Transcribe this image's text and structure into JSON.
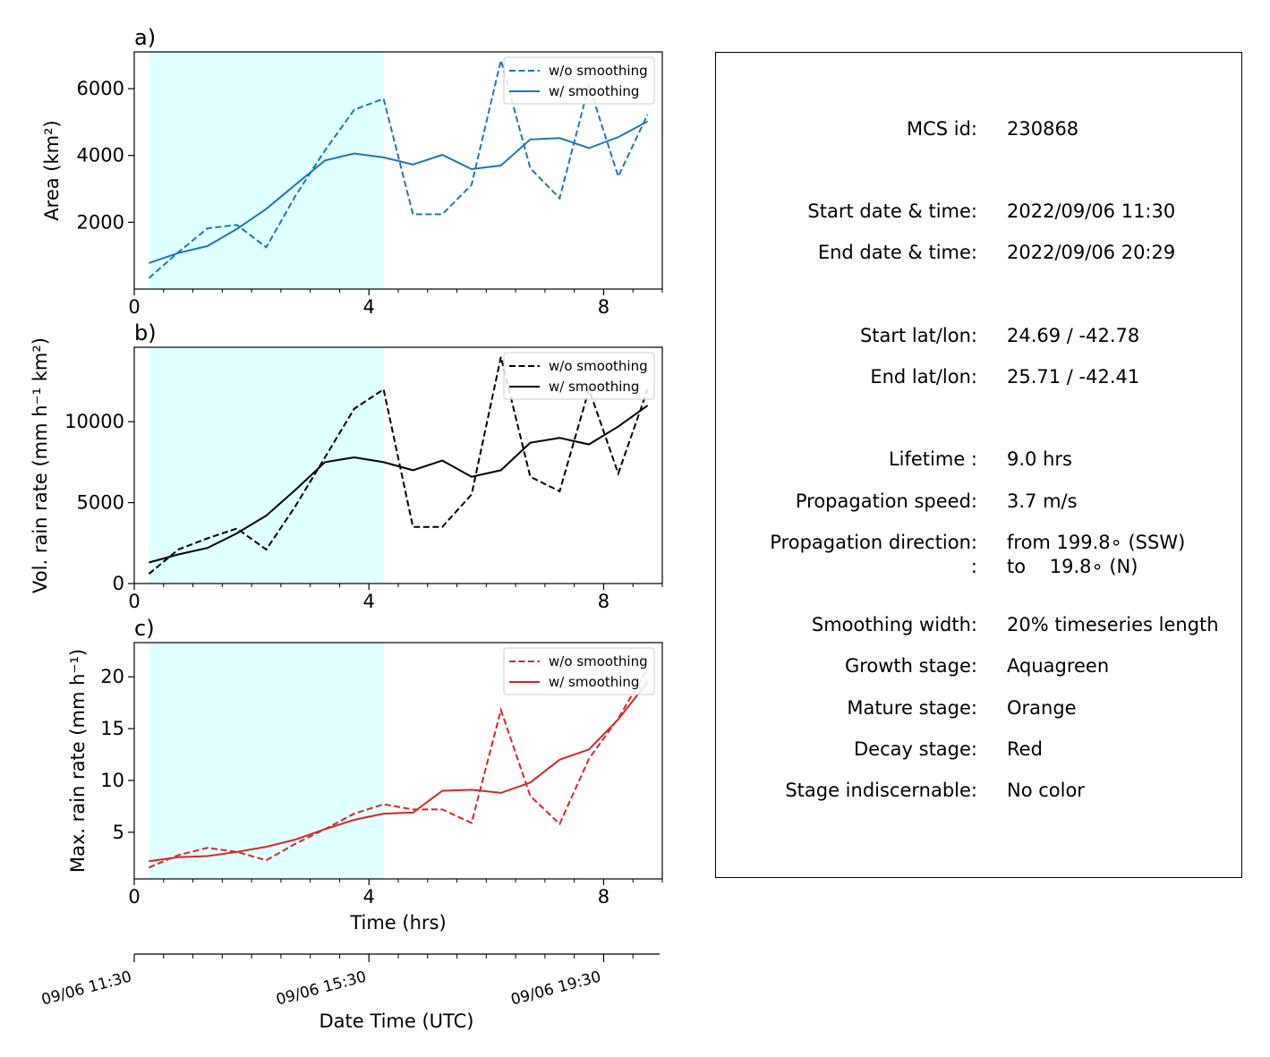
{
  "colors": {
    "growth_span": "#e0ffff",
    "area_series": "#1f77b4",
    "volrain_series": "#000000",
    "maxrain_series": "#d62728"
  },
  "chart_data": [
    {
      "type": "line",
      "panel_label": "a)",
      "ylabel": "Area  (km²)",
      "xlim": [
        0,
        9
      ],
      "ylim": [
        0,
        7100
      ],
      "xticks": [
        0,
        4,
        8
      ],
      "xticks_minor": [
        0.5,
        1,
        1.5,
        2,
        2.5,
        3,
        3.5,
        4.5,
        5,
        5.5,
        6,
        6.5,
        7,
        7.5,
        8.5,
        9
      ],
      "yticks": [
        2000,
        4000,
        6000
      ],
      "growth_span": [
        0.25,
        4.25
      ],
      "legend_location": "upper-right",
      "x": [
        0.25,
        0.75,
        1.25,
        1.75,
        2.25,
        2.75,
        3.25,
        3.75,
        4.25,
        4.75,
        5.25,
        5.75,
        6.25,
        6.75,
        7.25,
        7.75,
        8.25,
        8.75
      ],
      "series": [
        {
          "name": "w/o smoothing",
          "style": "dashed",
          "values": [
            330,
            1100,
            1820,
            1920,
            1250,
            2800,
            4150,
            5370,
            5700,
            2240,
            2240,
            3120,
            6850,
            3620,
            2720,
            6100,
            3370,
            5230
          ]
        },
        {
          "name": "w/ smoothing",
          "style": "solid",
          "values": [
            780,
            1080,
            1290,
            1800,
            2400,
            3130,
            3850,
            4060,
            3940,
            3730,
            4020,
            3590,
            3700,
            4480,
            4520,
            4220,
            4550,
            5020
          ]
        }
      ]
    },
    {
      "type": "line",
      "panel_label": "b)",
      "ylabel": "Vol. rain rate (mm h⁻¹ km²)",
      "xlim": [
        0,
        9
      ],
      "ylim": [
        0,
        14600
      ],
      "xticks": [
        0,
        4,
        8
      ],
      "xticks_minor": [
        0.5,
        1,
        1.5,
        2,
        2.5,
        3,
        3.5,
        4.5,
        5,
        5.5,
        6,
        6.5,
        7,
        7.5,
        8.5,
        9
      ],
      "yticks": [
        0,
        5000,
        10000
      ],
      "growth_span": [
        0.25,
        4.25
      ],
      "legend_location": "upper-right",
      "x": [
        0.25,
        0.75,
        1.25,
        1.75,
        2.25,
        2.75,
        3.25,
        3.75,
        4.25,
        4.75,
        5.25,
        5.75,
        6.25,
        6.75,
        7.25,
        7.75,
        8.25,
        8.75
      ],
      "series": [
        {
          "name": "w/o smoothing",
          "style": "dashed",
          "values": [
            600,
            2100,
            2800,
            3400,
            2100,
            4800,
            7800,
            10800,
            12000,
            3500,
            3500,
            5500,
            14000,
            6600,
            5700,
            12000,
            6800,
            12000
          ]
        },
        {
          "name": "w/ smoothing",
          "style": "solid",
          "values": [
            1300,
            1800,
            2200,
            3100,
            4200,
            5800,
            7500,
            7800,
            7500,
            7000,
            7600,
            6600,
            7000,
            8700,
            9000,
            8600,
            9700,
            11000
          ]
        }
      ]
    },
    {
      "type": "line",
      "panel_label": "c)",
      "ylabel": "Max. rain rate  (mm h⁻¹)",
      "xlabel": "Time (hrs)",
      "xlim": [
        0,
        9
      ],
      "ylim": [
        0.5,
        23.3
      ],
      "xticks": [
        0,
        4,
        8
      ],
      "xticks_minor": [
        0.5,
        1,
        1.5,
        2,
        2.5,
        3,
        3.5,
        4.5,
        5,
        5.5,
        6,
        6.5,
        7,
        7.5,
        8.5,
        9
      ],
      "yticks": [
        5,
        10,
        15,
        20
      ],
      "growth_span": [
        0.25,
        4.25
      ],
      "legend_location": "upper-right",
      "x": [
        0.25,
        0.75,
        1.25,
        1.75,
        2.25,
        2.75,
        3.25,
        3.75,
        4.25,
        4.75,
        5.25,
        5.75,
        6.25,
        6.75,
        7.25,
        7.75,
        8.25,
        8.75
      ],
      "series": [
        {
          "name": "w/o smoothing",
          "style": "dashed",
          "values": [
            1.6,
            2.8,
            3.5,
            3.1,
            2.3,
            3.9,
            5.3,
            6.8,
            7.7,
            7.2,
            7.2,
            5.9,
            16.8,
            8.5,
            5.8,
            12.1,
            16.0,
            20.8
          ]
        },
        {
          "name": "w/ smoothing",
          "style": "solid",
          "values": [
            2.2,
            2.6,
            2.7,
            3.1,
            3.6,
            4.3,
            5.3,
            6.2,
            6.8,
            6.9,
            9.0,
            9.1,
            8.8,
            9.8,
            12.0,
            13.0,
            15.9,
            19.5
          ]
        }
      ]
    }
  ],
  "datetime_axis": {
    "label": "Date Time (UTC)",
    "ticks": [
      {
        "hrs": 0,
        "label": "09/06 11:30"
      },
      {
        "hrs": 4,
        "label": "09/06 15:30"
      },
      {
        "hrs": 8,
        "label": "09/06 19:30"
      }
    ],
    "minor_ticks": [
      0.5,
      1,
      1.5,
      2,
      2.5,
      3,
      3.5,
      4.5,
      5,
      5.5,
      6,
      6.5,
      7,
      7.5,
      8.5
    ]
  },
  "info": {
    "mcs_id_label": "MCS id:",
    "mcs_id": "230868",
    "start_time_label": "Start date & time:",
    "start_time": "2022/09/06 11:30",
    "end_time_label": "End date & time:",
    "end_time": "2022/09/06 20:29",
    "start_latlon_label": "Start lat/lon:",
    "start_latlon": "24.69 / -42.78",
    "end_latlon_label": "End lat/lon:",
    "end_latlon": "25.71 / -42.41",
    "lifetime_label": "Lifetime :",
    "lifetime": "9.0 hrs",
    "speed_label": "Propagation speed:",
    "speed": "3.7 m/s",
    "direction_label": "Propagation direction:",
    "direction_from": "from 199.8∘ (SSW)",
    "direction_colon": ":",
    "direction_to": "to    19.8∘ (N)",
    "smoothing_label": "Smoothing width:",
    "smoothing": "20% timeseries length",
    "growth_label": "Growth stage:",
    "growth": "Aquagreen",
    "mature_label": "Mature stage:",
    "mature": "Orange",
    "decay_label": "Decay stage:",
    "decay": "Red",
    "indisc_label": "Stage indiscernable:",
    "indisc": "No color"
  }
}
